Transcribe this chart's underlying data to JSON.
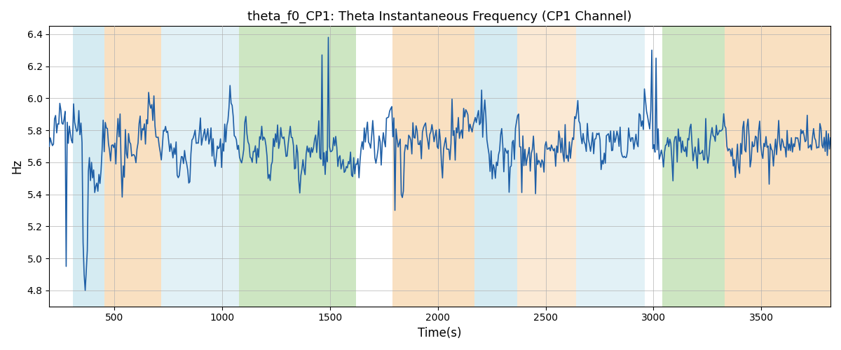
{
  "title": "theta_f0_CP1: Theta Instantaneous Frequency (CP1 Channel)",
  "xlabel": "Time(s)",
  "ylabel": "Hz",
  "ylim": [
    4.7,
    6.45
  ],
  "xlim": [
    200,
    3820
  ],
  "xticks": [
    500,
    1000,
    1500,
    2000,
    2500,
    3000,
    3500
  ],
  "yticks": [
    4.8,
    5.0,
    5.2,
    5.4,
    5.6,
    5.8,
    6.0,
    6.2,
    6.4
  ],
  "line_color": "#1f5fa6",
  "line_width": 1.2,
  "grid_color": "#b0b0b0",
  "bands": [
    {
      "start": 310,
      "end": 455,
      "color": "#add8e6",
      "alpha": 0.5
    },
    {
      "start": 455,
      "end": 720,
      "color": "#f4c285",
      "alpha": 0.5
    },
    {
      "start": 720,
      "end": 1080,
      "color": "#add8e6",
      "alpha": 0.35
    },
    {
      "start": 1080,
      "end": 1620,
      "color": "#90c878",
      "alpha": 0.45
    },
    {
      "start": 1790,
      "end": 2170,
      "color": "#f4c285",
      "alpha": 0.5
    },
    {
      "start": 2170,
      "end": 2370,
      "color": "#add8e6",
      "alpha": 0.5
    },
    {
      "start": 2370,
      "end": 2640,
      "color": "#f4c285",
      "alpha": 0.35
    },
    {
      "start": 2640,
      "end": 2960,
      "color": "#add8e6",
      "alpha": 0.35
    },
    {
      "start": 3040,
      "end": 3330,
      "color": "#90c878",
      "alpha": 0.45
    },
    {
      "start": 3330,
      "end": 3820,
      "color": "#f4c285",
      "alpha": 0.5
    }
  ],
  "seed": 12345
}
